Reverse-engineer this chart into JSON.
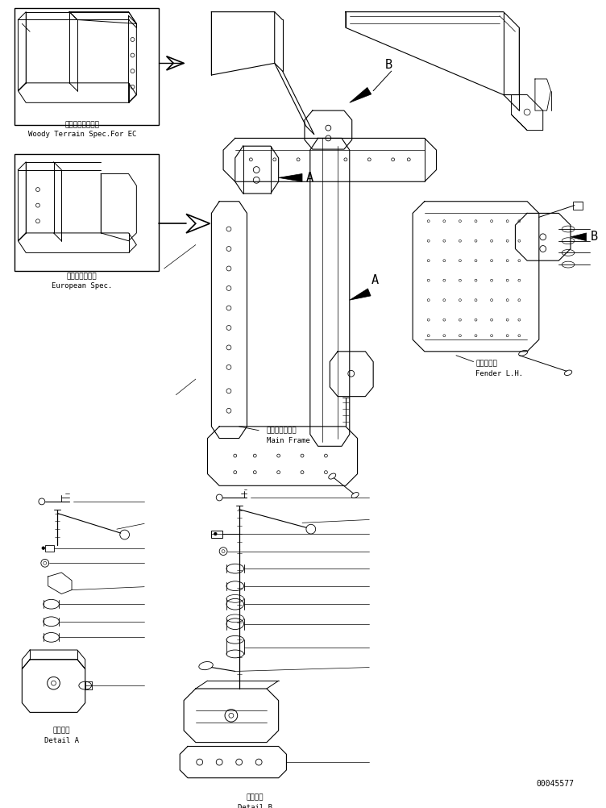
{
  "bg_color": "#ffffff",
  "line_color": "#000000",
  "fig_width": 7.52,
  "fig_height": 10.02,
  "dpi": 100,
  "part_number": "00045577",
  "labels": {
    "ec_jp": "ＥＣ向　森林仕様",
    "ec_en": "Woody Terrain Spec.For EC",
    "eu_jp": "ヨーロッパ仕様",
    "eu_en": "European Spec.",
    "fender_jp": "フェンダ左",
    "fender_en": "Fender L.H.",
    "mainframe_jp": "メインフレーム",
    "mainframe_en": "Main Frame",
    "detail_a_jp": "Ａ　詳細",
    "detail_a_en": "Detail A",
    "detail_b_jp": "Ｂ　詳細",
    "detail_b_en": "Detail B",
    "label_a": "A",
    "label_b": "B"
  },
  "font_size_label": 7.5,
  "font_size_small": 6.5
}
